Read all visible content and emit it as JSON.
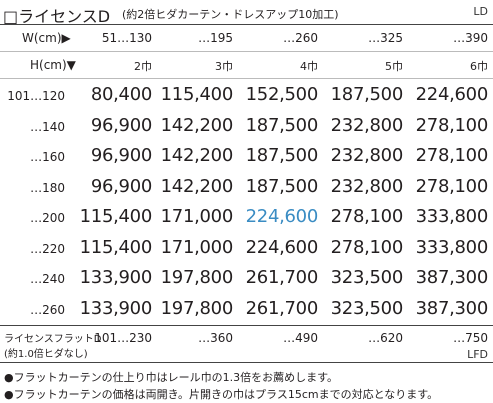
{
  "title": {
    "main": "□ライセンスD",
    "sub": "(約2倍ヒダカーテン・ドレスアップ10加工)",
    "code": "LD"
  },
  "headers": {
    "width_label": "W(cm)▶",
    "height_label": "H(cm)▼"
  },
  "width_columns": [
    "51…130",
    "…195",
    "…260",
    "…325",
    "…390"
  ],
  "panel_units": [
    "2巾",
    "3巾",
    "4巾",
    "5巾",
    "6巾"
  ],
  "rows": [
    {
      "height": "101…120",
      "prices": [
        "80,400",
        "115,400",
        "152,500",
        "187,500",
        "224,600"
      ]
    },
    {
      "height": "…140",
      "prices": [
        "96,900",
        "142,200",
        "187,500",
        "232,800",
        "278,100"
      ]
    },
    {
      "height": "…160",
      "prices": [
        "96,900",
        "142,200",
        "187,500",
        "232,800",
        "278,100"
      ]
    },
    {
      "height": "…180",
      "prices": [
        "96,900",
        "142,200",
        "187,500",
        "232,800",
        "278,100"
      ]
    },
    {
      "height": "…200",
      "prices": [
        "115,400",
        "171,000",
        "224,600",
        "278,100",
        "333,800"
      ]
    },
    {
      "height": "…220",
      "prices": [
        "115,400",
        "171,000",
        "224,600",
        "278,100",
        "333,800"
      ]
    },
    {
      "height": "…240",
      "prices": [
        "133,900",
        "197,800",
        "261,700",
        "323,500",
        "387,300"
      ]
    },
    {
      "height": "…260",
      "prices": [
        "133,900",
        "197,800",
        "261,700",
        "323,500",
        "387,300"
      ]
    }
  ],
  "highlight_color": "#3a8cc3",
  "flat": {
    "label_line1": "ライセンスフラットD",
    "label_line2": "(約1.0倍ヒダなし)",
    "widths": [
      "101…230",
      "…360",
      "…490",
      "…620",
      "…750"
    ],
    "code": "LFD"
  },
  "notes": [
    "●フラットカーテンの仕上り巾はレール巾の1.3倍をお薦めします。",
    "●フラットカーテンの価格は両開き。片開きの巾はプラス15cmまでの対応となります。"
  ]
}
